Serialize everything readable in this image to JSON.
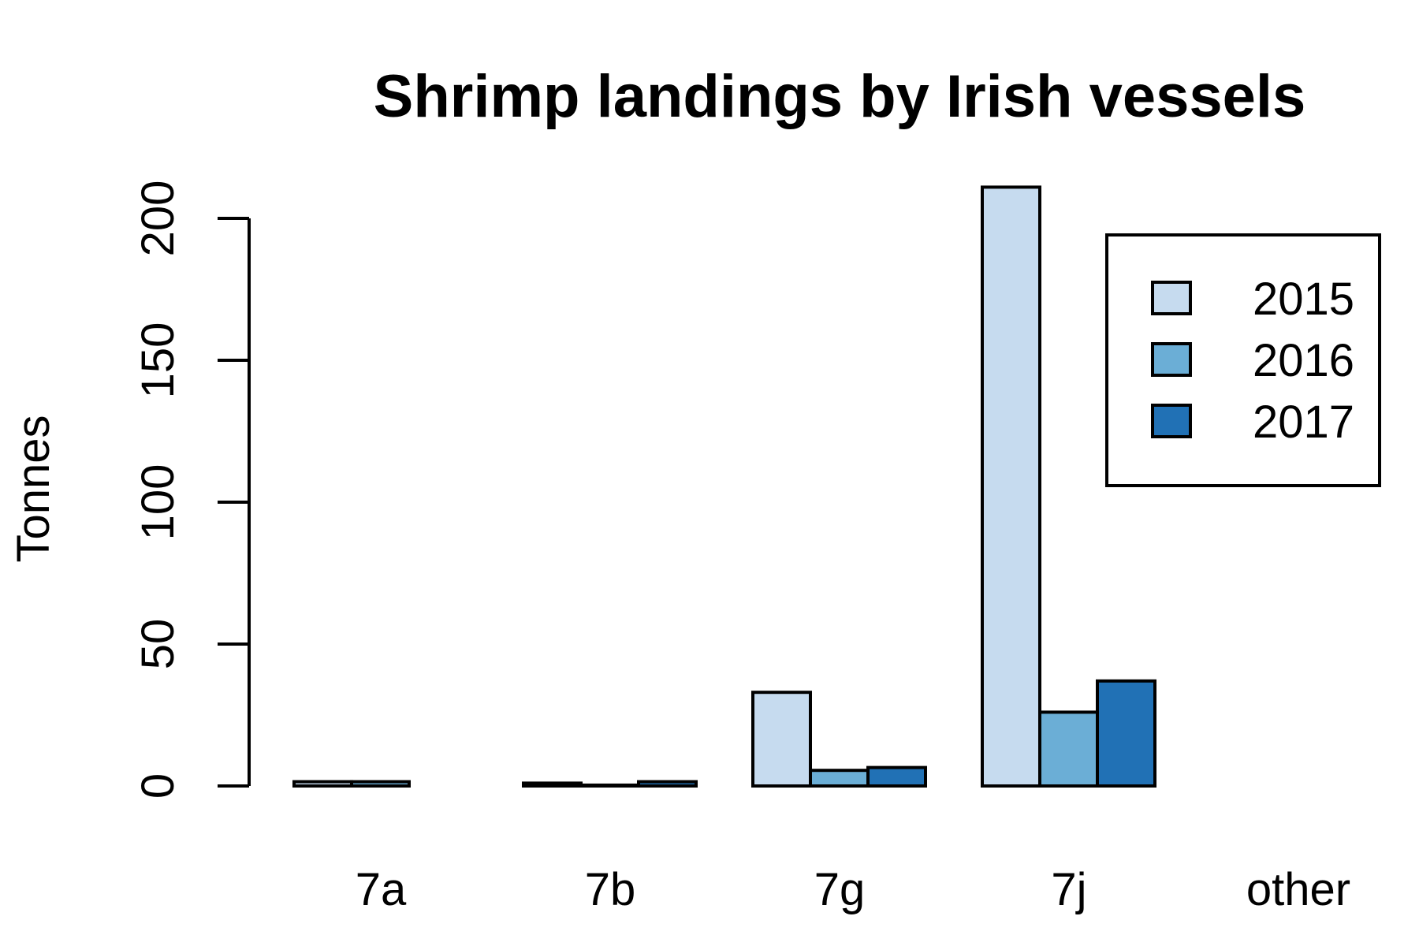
{
  "chart_data": {
    "type": "bar",
    "title": "Shrimp landings by Irish vessels",
    "xlabel": "",
    "ylabel": "Tonnes",
    "categories": [
      "7a",
      "7b",
      "7g",
      "7j",
      "other"
    ],
    "series": [
      {
        "name": "2015",
        "color": "#c6dbef",
        "values": [
          1.5,
          1,
          33,
          211,
          0
        ]
      },
      {
        "name": "2016",
        "color": "#6baed6",
        "values": [
          1.5,
          0.3,
          5.5,
          26,
          0
        ]
      },
      {
        "name": "2017",
        "color": "#2171b5",
        "values": [
          0,
          1.5,
          6.5,
          37,
          0
        ]
      }
    ],
    "yticks": [
      "0",
      "50",
      "100",
      "150",
      "200"
    ],
    "ylim": [
      0,
      211
    ],
    "grid": false,
    "legend": "top-right"
  }
}
